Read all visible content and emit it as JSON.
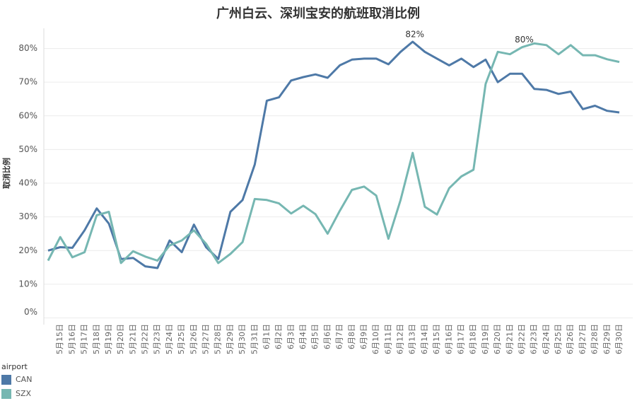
{
  "chart_data": {
    "type": "line",
    "title": "广州白云、深圳宝安的航班取消比例",
    "y_label": "取消比例",
    "legend_title": "airport",
    "categories": [
      null,
      "5月15日",
      "5月16日",
      "5月17日",
      "5月18日",
      "5月19日",
      "5月20日",
      "5月21日",
      "5月22日",
      "5月23日",
      "5月24日",
      "5月25日",
      "5月26日",
      "5月27日",
      "5月28日",
      "5月29日",
      "5月30日",
      "5月31日",
      "6月1日",
      "6月2日",
      "6月3日",
      "6月4日",
      "6月5日",
      "6月6日",
      "6月7日",
      "6月8日",
      "6月9日",
      "6月10日",
      "6月11日",
      "6月12日",
      "6月13日",
      "6月14日",
      "6月15日",
      "6月16日",
      "6月17日",
      "6月18日",
      "6月19日",
      "6月20日",
      "6月21日",
      "6月22日",
      "6月23日",
      "6月24日",
      "6月25日",
      "6月26日",
      "6月27日",
      "6月28日",
      "6月29日",
      "6月30日"
    ],
    "series": [
      {
        "name": "CAN",
        "color": "#4e79a7",
        "values": [
          20,
          21,
          20.8,
          26,
          32.5,
          28,
          17.5,
          17.8,
          15.3,
          14.8,
          23,
          19.5,
          27.7,
          21,
          17.5,
          31.5,
          35,
          45.5,
          64.5,
          65.5,
          70.5,
          71.5,
          72.3,
          71.3,
          75,
          76.7,
          77,
          77,
          75.3,
          79,
          82,
          79,
          77,
          75,
          77,
          74.5,
          76.7,
          70,
          72.5,
          72.5,
          68,
          67.7,
          66.5,
          67.2,
          62,
          63,
          61.5,
          61
        ],
        "value_labels": [
          null,
          null,
          null,
          null,
          null,
          null,
          null,
          null,
          null,
          null,
          null,
          null,
          null,
          null,
          null,
          null,
          null,
          null,
          null,
          null,
          null,
          null,
          null,
          null,
          null,
          null,
          null,
          null,
          null,
          null,
          "82%",
          null,
          null,
          null,
          null,
          null,
          null,
          null,
          null,
          null,
          null,
          null,
          null,
          null,
          null,
          null,
          null,
          null
        ]
      },
      {
        "name": "SZX",
        "color": "#76b7b2",
        "values": [
          17,
          24,
          18,
          19.5,
          30.5,
          31.5,
          16.3,
          19.8,
          18.2,
          17,
          21.5,
          23,
          26,
          22,
          16.3,
          19,
          22.5,
          35.3,
          35,
          34,
          31,
          33.3,
          30.8,
          25,
          31.8,
          38,
          39,
          36.3,
          23.5,
          35,
          49,
          33,
          30.7,
          38.5,
          42,
          44,
          69.5,
          79,
          78.3,
          80.4,
          81.5,
          81,
          78.3,
          81,
          78,
          78,
          76.8,
          76
        ],
        "value_labels": [
          null,
          null,
          null,
          null,
          null,
          null,
          null,
          null,
          null,
          null,
          null,
          null,
          null,
          null,
          null,
          null,
          null,
          null,
          null,
          null,
          null,
          null,
          null,
          null,
          null,
          null,
          null,
          null,
          null,
          null,
          null,
          null,
          null,
          null,
          null,
          null,
          null,
          null,
          null,
          "80%",
          null,
          null,
          null,
          null,
          null,
          null,
          null,
          null
        ]
      }
    ],
    "ylim": [
      -2,
      86
    ],
    "yticks": [
      {
        "value": 0,
        "label": "0%"
      },
      {
        "value": 10,
        "label": "10%"
      },
      {
        "value": 20,
        "label": "20%"
      },
      {
        "value": 30,
        "label": "30%"
      },
      {
        "value": 40,
        "label": "40%"
      },
      {
        "value": 50,
        "label": "50%"
      },
      {
        "value": 60,
        "label": "60%"
      },
      {
        "value": 70,
        "label": "70%"
      },
      {
        "value": 80,
        "label": "80%"
      }
    ],
    "grid": true
  }
}
